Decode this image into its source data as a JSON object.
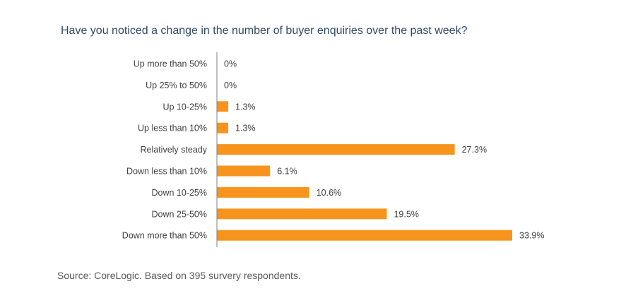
{
  "chart_data": {
    "type": "bar",
    "orientation": "horizontal",
    "title": "Have you noticed a change in the number of buyer enquiries over the past week?",
    "categories": [
      "Up more than 50%",
      "Up 25% to 50%",
      "Up 10-25%",
      "Up less than 10%",
      "Relatively steady",
      "Down less than 10%",
      "Down 10-25%",
      "Down 25-50%",
      "Down more than 50%"
    ],
    "values": [
      0,
      0,
      1.3,
      1.3,
      27.3,
      6.1,
      10.6,
      19.5,
      33.9
    ],
    "value_labels": [
      "0%",
      "0%",
      "1.3%",
      "1.3%",
      "27.3%",
      "6.1%",
      "10.6%",
      "19.5%",
      "33.9%"
    ],
    "xlim": [
      0,
      33.9
    ],
    "bar_color": "#f7941d",
    "grid": false,
    "legend": "none"
  },
  "source": "Source: CoreLogic. Based on 395 survery respondents."
}
